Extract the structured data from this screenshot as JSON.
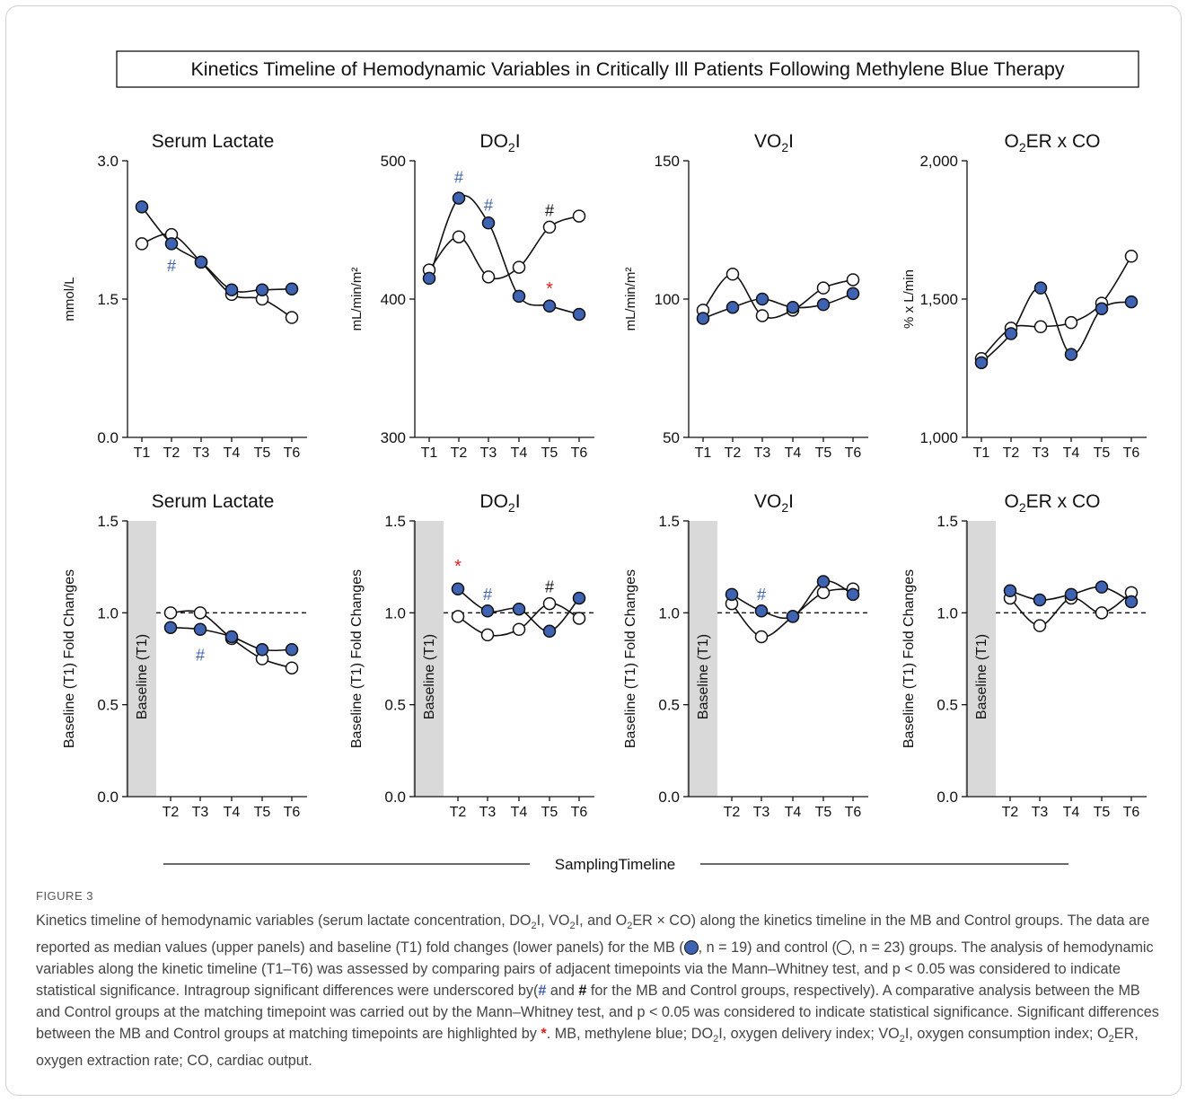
{
  "figure_title": "Kinetics Timeline of Hemodynamic Variables in Critically Ill Patients Following Methylene Blue Therapy",
  "shared_xlabel": "SamplingTimeline",
  "colors": {
    "mb": "#3f63b3",
    "control": "#ffffff",
    "mb_sig": "#3f63b3",
    "control_sig": "#111111",
    "between_sig": "#e02020",
    "baseline_band": "#d9d9d9"
  },
  "chart_data": [
    {
      "type": "line",
      "title": "Serum Lactate",
      "ylabel": "mmol/L",
      "ylim": [
        0,
        3
      ],
      "yticks": [
        "0.0",
        "1.5",
        "3.0"
      ],
      "ytick_values": [
        0,
        1.5,
        3
      ],
      "categories": [
        "T1",
        "T2",
        "T3",
        "T4",
        "T5",
        "T6"
      ],
      "series": [
        {
          "group": "mb",
          "values": [
            2.5,
            2.1,
            1.9,
            1.6,
            1.6,
            1.61
          ]
        },
        {
          "group": "control",
          "values": [
            2.1,
            2.2,
            1.9,
            1.55,
            1.5,
            1.3
          ]
        }
      ],
      "annotations": [
        {
          "symbol": "#",
          "kind": "mb_sig",
          "x": "T2",
          "y": 1.86
        }
      ]
    },
    {
      "type": "line",
      "title": "DO2I",
      "ylabel": "mL/min/m²",
      "ylim": [
        300,
        500
      ],
      "yticks": [
        "300",
        "400",
        "500"
      ],
      "ytick_values": [
        300,
        400,
        500
      ],
      "categories": [
        "T1",
        "T2",
        "T3",
        "T4",
        "T5",
        "T6"
      ],
      "series": [
        {
          "group": "mb",
          "values": [
            415,
            473,
            455,
            402,
            395,
            389
          ]
        },
        {
          "group": "control",
          "values": [
            421,
            445,
            416,
            423,
            452,
            460
          ]
        }
      ],
      "annotations": [
        {
          "symbol": "#",
          "kind": "mb_sig",
          "x": "T2",
          "y": 488
        },
        {
          "symbol": "#",
          "kind": "mb_sig",
          "x": "T3",
          "y": 468
        },
        {
          "symbol": "#",
          "kind": "control_sig",
          "x": "T5",
          "y": 464
        },
        {
          "symbol": "*",
          "kind": "between_sig",
          "x": "T5",
          "y": 407
        }
      ]
    },
    {
      "type": "line",
      "title": "VO2I",
      "ylabel": "mL/min/m²",
      "ylim": [
        50,
        150
      ],
      "yticks": [
        "50",
        "100",
        "150"
      ],
      "ytick_values": [
        50,
        100,
        150
      ],
      "categories": [
        "T1",
        "T2",
        "T3",
        "T4",
        "T5",
        "T6"
      ],
      "series": [
        {
          "group": "mb",
          "values": [
            93,
            97,
            100,
            97,
            98,
            102
          ]
        },
        {
          "group": "control",
          "values": [
            96,
            109,
            94,
            96,
            104,
            107
          ]
        }
      ],
      "annotations": []
    },
    {
      "type": "line",
      "title": "O2ER x CO",
      "ylabel": "% x L/min",
      "ylim": [
        1000,
        2000
      ],
      "yticks": [
        "1,000",
        "1,500",
        "2,000"
      ],
      "ytick_values": [
        1000,
        1500,
        2000
      ],
      "categories": [
        "T1",
        "T2",
        "T3",
        "T4",
        "T5",
        "T6"
      ],
      "series": [
        {
          "group": "mb",
          "values": [
            1270,
            1375,
            1540,
            1300,
            1465,
            1490
          ]
        },
        {
          "group": "control",
          "values": [
            1285,
            1395,
            1400,
            1415,
            1485,
            1655
          ]
        }
      ],
      "annotations": []
    },
    {
      "type": "line",
      "title": "Serum Lactate",
      "ylabel": "Baseline (T1) Fold Changes",
      "ylim": [
        0,
        1.5
      ],
      "yticks": [
        "0.0",
        "0.5",
        "1.0",
        "1.5"
      ],
      "ytick_values": [
        0,
        0.5,
        1,
        1.5
      ],
      "reference_line": 1.0,
      "baseline_label": "Baseline (T1)",
      "categories": [
        "T2",
        "T3",
        "T4",
        "T5",
        "T6"
      ],
      "series": [
        {
          "group": "mb",
          "values": [
            0.92,
            0.91,
            0.87,
            0.8,
            0.8
          ]
        },
        {
          "group": "control",
          "values": [
            1.0,
            1.0,
            0.86,
            0.75,
            0.7
          ]
        }
      ],
      "annotations": [
        {
          "symbol": "#",
          "kind": "mb_sig",
          "x": "T3",
          "y": 0.77
        }
      ]
    },
    {
      "type": "line",
      "title": "DO2I",
      "ylabel": "Baseline (T1) Fold Changes",
      "ylim": [
        0,
        1.5
      ],
      "yticks": [
        "0.0",
        "0.5",
        "1.0",
        "1.5"
      ],
      "ytick_values": [
        0,
        0.5,
        1,
        1.5
      ],
      "reference_line": 1.0,
      "baseline_label": "Baseline (T1)",
      "categories": [
        "T2",
        "T3",
        "T4",
        "T5",
        "T6"
      ],
      "series": [
        {
          "group": "mb",
          "values": [
            1.13,
            1.01,
            1.02,
            0.9,
            1.08
          ]
        },
        {
          "group": "control",
          "values": [
            0.98,
            0.88,
            0.91,
            1.05,
            0.97
          ]
        }
      ],
      "annotations": [
        {
          "symbol": "*",
          "kind": "between_sig",
          "x": "T2",
          "y": 1.25
        },
        {
          "symbol": "#",
          "kind": "mb_sig",
          "x": "T3",
          "y": 1.1
        },
        {
          "symbol": "#",
          "kind": "control_sig",
          "x": "T5",
          "y": 1.14
        }
      ]
    },
    {
      "type": "line",
      "title": "VO2I",
      "ylabel": "Baseline (T1) Fold Changes",
      "ylim": [
        0,
        1.5
      ],
      "yticks": [
        "0.0",
        "0.5",
        "1.0",
        "1.5"
      ],
      "ytick_values": [
        0,
        0.5,
        1,
        1.5
      ],
      "reference_line": 1.0,
      "baseline_label": "Baseline (T1)",
      "categories": [
        "T2",
        "T3",
        "T4",
        "T5",
        "T6"
      ],
      "series": [
        {
          "group": "mb",
          "values": [
            1.1,
            1.01,
            0.98,
            1.17,
            1.1
          ]
        },
        {
          "group": "control",
          "values": [
            1.05,
            0.87,
            0.98,
            1.11,
            1.13
          ]
        }
      ],
      "annotations": [
        {
          "symbol": "#",
          "kind": "mb_sig",
          "x": "T3",
          "y": 1.1
        }
      ]
    },
    {
      "type": "line",
      "title": "O2ER x CO",
      "ylabel": "Baseline (T1) Fold Changes",
      "ylim": [
        0,
        1.5
      ],
      "yticks": [
        "0.0",
        "0.5",
        "1.0",
        "1.5"
      ],
      "ytick_values": [
        0,
        0.5,
        1,
        1.5
      ],
      "reference_line": 1.0,
      "baseline_label": "Baseline (T1)",
      "categories": [
        "T2",
        "T3",
        "T4",
        "T5",
        "T6"
      ],
      "series": [
        {
          "group": "mb",
          "values": [
            1.12,
            1.07,
            1.1,
            1.14,
            1.06
          ]
        },
        {
          "group": "control",
          "values": [
            1.08,
            0.93,
            1.08,
            1.0,
            1.11
          ]
        }
      ],
      "annotations": []
    }
  ],
  "caption": {
    "label": "FIGURE 3",
    "p1": "Kinetics timeline of hemodynamic variables (serum lactate concentration, DO",
    "p1b": "I, VO",
    "p1c": "I, and O",
    "p1d": "ER × CO) along the kinetics timeline in the MB and Control groups. The data are reported as median values (upper panels) and baseline (T1) fold changes (lower panels) for the MB (",
    "p1e": ", n = 19) and control (",
    "p1f": ", n = 23) groups. The analysis of hemodynamic variables along the kinetic timeline (T1–T6) was assessed by comparing pairs of adjacent timepoints via the Mann–Whitney test, and p < 0.05 was considered to indicate statistical significance. Intragroup significant differences were underscored by(",
    "p1g": " and ",
    "p1h": " for the MB and Control groups, respectively). A comparative analysis between the MB and Control groups at the matching timepoint was carried out by the Mann–Whitney test, and p < 0.05 was considered to indicate statistical significance. Significant differences between the MB and Control groups at matching timepoints are highlighted by ",
    "p1i": ". MB, methylene blue; DO",
    "p1j": "I, oxygen delivery index; VO",
    "p1k": "I, oxygen consumption index; O",
    "p1l": "ER, oxygen extraction rate; CO, cardiac output.",
    "sub": "2",
    "hash": "#",
    "star": "*"
  }
}
